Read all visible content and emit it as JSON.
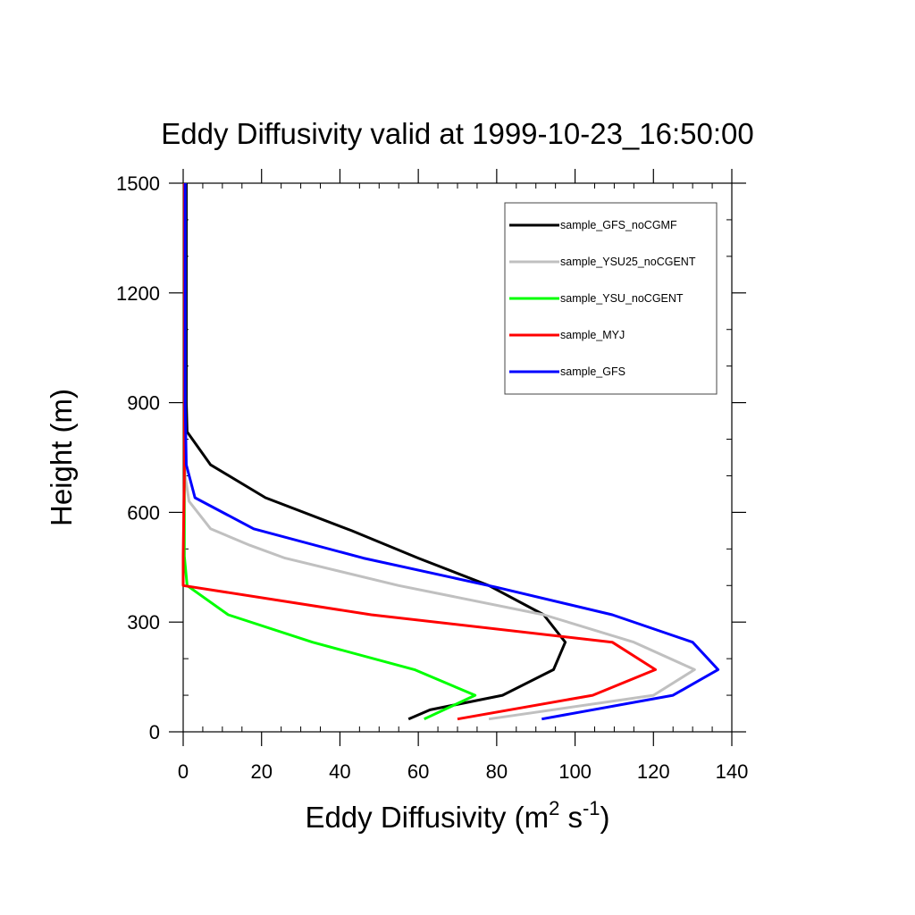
{
  "chart_data": {
    "type": "line",
    "title": "Eddy Diffusivity valid at 1999-10-23_16:50:00",
    "xlabel": {
      "base": "Eddy Diffusivity (m",
      "sup1": "2",
      "mid": " s",
      "sup2": "-1",
      "end": ")"
    },
    "ylabel": "Height (m)",
    "xlim": [
      0,
      140
    ],
    "ylim": [
      0,
      1500
    ],
    "xticks": [
      0,
      20,
      40,
      60,
      80,
      100,
      120,
      140
    ],
    "yticks": [
      0,
      300,
      600,
      900,
      1200,
      1500
    ],
    "xtick_labels": [
      "0",
      "20",
      "40",
      "60",
      "80",
      "100",
      "120",
      "140"
    ],
    "ytick_labels": [
      "0",
      "300",
      "600",
      "900",
      "1200",
      "1500"
    ],
    "grid": false,
    "legend_position": "top-right",
    "series": [
      {
        "name": "sample_GFS_noCGMF",
        "color": "#000000",
        "x": [
          57.5,
          63,
          81.5,
          94.5,
          97.5,
          92,
          78,
          60,
          43,
          21,
          7,
          1,
          0.8,
          0.8,
          0.8,
          0.8
        ],
        "y": [
          35,
          60,
          100,
          170,
          245,
          320,
          400,
          475,
          550,
          640,
          730,
          820,
          900,
          1100,
          1300,
          1500
        ]
      },
      {
        "name": "sample_YSU25_noCGENT",
        "color": "#c0c0c0",
        "x": [
          78,
          120,
          130.5,
          115,
          92,
          55,
          26,
          17,
          7,
          1.5,
          0.5,
          0.5,
          0.5,
          0.5,
          0.5
        ],
        "y": [
          35,
          100,
          170,
          245,
          320,
          400,
          475,
          510,
          555,
          630,
          700,
          900,
          1100,
          1300,
          1500
        ]
      },
      {
        "name": "sample_YSU_noCGENT",
        "color": "#00ff00",
        "x": [
          61.5,
          74.5,
          59,
          33,
          11.5,
          1,
          0.3,
          0.3,
          0.3,
          0.3,
          0.3
        ],
        "y": [
          35,
          100,
          170,
          245,
          320,
          400,
          480,
          700,
          1000,
          1300,
          1500
        ]
      },
      {
        "name": "sample_MYJ",
        "color": "#ff0000",
        "x": [
          70,
          104.5,
          120.5,
          109.5,
          48,
          0,
          0,
          0.3,
          0.3,
          0.3,
          0.3
        ],
        "y": [
          35,
          100,
          170,
          245,
          320,
          400,
          480,
          700,
          1000,
          1300,
          1500
        ]
      },
      {
        "name": "sample_GFS",
        "color": "#0000ff",
        "x": [
          91.5,
          125,
          136.5,
          130,
          109.5,
          80,
          46,
          18,
          3,
          0.8,
          0.5,
          0.5,
          0.5,
          0.5
        ],
        "y": [
          35,
          100,
          170,
          245,
          320,
          395,
          475,
          555,
          640,
          730,
          900,
          1100,
          1300,
          1500
        ]
      }
    ]
  }
}
